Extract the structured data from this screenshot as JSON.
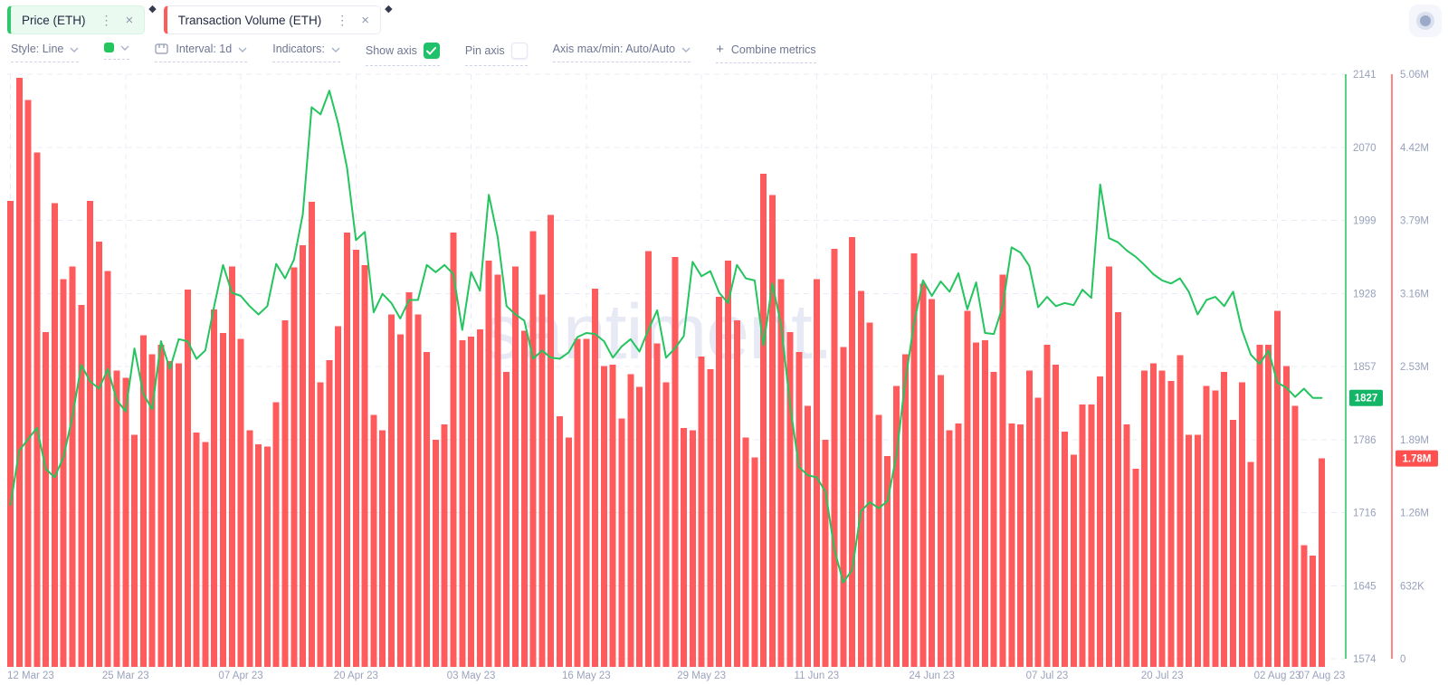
{
  "header": {
    "tabs": [
      {
        "label": "Price (ETH)",
        "accent": "#2ec76d"
      },
      {
        "label": "Transaction Volume (ETH)",
        "accent": "#ff5b5c"
      }
    ]
  },
  "icons": {
    "kebab": "⋮",
    "close": "×",
    "plus": "+",
    "diamond": "◆"
  },
  "toolbar": {
    "style": {
      "label": "Style: Line"
    },
    "color_swatch": "#22c55e",
    "interval": {
      "label": "Interval: 1d"
    },
    "indicators": {
      "label": "Indicators:"
    },
    "show_axis": {
      "label": "Show axis",
      "checked": true
    },
    "pin_axis": {
      "label": "Pin axis",
      "checked": false
    },
    "axis_maxmin": {
      "label": "Axis max/min: Auto/Auto"
    },
    "combine": {
      "label": "Combine metrics"
    }
  },
  "watermark": "santiment.",
  "chart_data": {
    "type": "combo",
    "title": "",
    "x": {
      "unit": "day",
      "start": "12 Mar 23",
      "end": "07 Aug 23",
      "labels": [
        {
          "text": "12 Mar 23",
          "day": 0
        },
        {
          "text": "25 Mar 23",
          "day": 13
        },
        {
          "text": "07 Apr 23",
          "day": 26
        },
        {
          "text": "20 Apr 23",
          "day": 39
        },
        {
          "text": "03 May 23",
          "day": 52
        },
        {
          "text": "16 May 23",
          "day": 65
        },
        {
          "text": "29 May 23",
          "day": 78
        },
        {
          "text": "11 Jun 23",
          "day": 91
        },
        {
          "text": "24 Jun 23",
          "day": 104
        },
        {
          "text": "07 Jul 23",
          "day": 117
        },
        {
          "text": "20 Jul 23",
          "day": 130
        },
        {
          "text": "02 Aug 23",
          "day": 143
        },
        {
          "text": "07 Aug 23",
          "day": 148
        }
      ]
    },
    "price_axis": {
      "color": "#22c55e",
      "min": 1574,
      "max": 2141,
      "ticks": [
        2141,
        2070,
        1999,
        1928,
        1857,
        1786,
        1716,
        1645,
        1574
      ],
      "current_value": "1827"
    },
    "volume_axis": {
      "color": "#ff5b5c",
      "min": 0,
      "max_millions": 5.06,
      "ticks": [
        "5.06M",
        "4.42M",
        "3.79M",
        "3.16M",
        "2.53M",
        "1.89M",
        "1.26M",
        "632K",
        "0"
      ],
      "current_value": "1.78M"
    },
    "series": [
      {
        "name": "Price (ETH)",
        "type": "line",
        "color": "#24c45e",
        "values": [
          1723,
          1776,
          1787,
          1798,
          1758,
          1750,
          1770,
          1809,
          1859,
          1843,
          1836,
          1855,
          1825,
          1814,
          1875,
          1831,
          1816,
          1882,
          1855,
          1884,
          1882,
          1865,
          1873,
          1916,
          1956,
          1929,
          1926,
          1916,
          1908,
          1916,
          1957,
          1943,
          1961,
          2005,
          2109,
          2102,
          2125,
          2093,
          2050,
          1980,
          1988,
          1910,
          1928,
          1919,
          1904,
          1922,
          1922,
          1956,
          1949,
          1956,
          1947,
          1893,
          1949,
          1931,
          2024,
          1983,
          1916,
          1908,
          1902,
          1865,
          1873,
          1866,
          1865,
          1871,
          1886,
          1890,
          1889,
          1882,
          1866,
          1877,
          1884,
          1872,
          1893,
          1912,
          1866,
          1875,
          1887,
          1959,
          1945,
          1950,
          1929,
          1919,
          1956,
          1943,
          1941,
          1878,
          1938,
          1897,
          1820,
          1760,
          1752,
          1750,
          1736,
          1680,
          1648,
          1660,
          1717,
          1726,
          1720,
          1727,
          1771,
          1843,
          1900,
          1941,
          1926,
          1940,
          1930,
          1948,
          1913,
          1939,
          1890,
          1889,
          1916,
          1973,
          1968,
          1955,
          1915,
          1925,
          1916,
          1919,
          1917,
          1932,
          1924,
          2034,
          1982,
          1978,
          1970,
          1964,
          1956,
          1947,
          1941,
          1938,
          1943,
          1930,
          1908,
          1922,
          1925,
          1916,
          1930,
          1893,
          1869,
          1860,
          1873,
          1842,
          1837,
          1828,
          1836,
          1827,
          1827
        ]
      },
      {
        "name": "Transaction Volume (ETH)",
        "type": "bar",
        "color": "#ff5b5c",
        "unit": "millions",
        "values": [
          3.98,
          5.03,
          4.84,
          4.39,
          2.86,
          3.96,
          3.31,
          3.42,
          3.09,
          3.98,
          3.63,
          3.38,
          2.53,
          2.47,
          1.98,
          2.83,
          2.67,
          2.75,
          2.61,
          2.59,
          3.22,
          2.0,
          1.92,
          3.05,
          2.85,
          3.42,
          2.8,
          2.02,
          1.9,
          1.88,
          2.26,
          2.96,
          3.41,
          3.6,
          3.97,
          2.43,
          2.62,
          2.91,
          3.71,
          3.56,
          3.43,
          2.15,
          2.02,
          3.01,
          2.84,
          3.2,
          3.01,
          2.69,
          1.94,
          2.07,
          3.71,
          2.79,
          2.82,
          2.88,
          3.47,
          3.35,
          2.52,
          3.42,
          2.87,
          3.72,
          3.18,
          3.86,
          2.14,
          1.96,
          2.8,
          2.8,
          3.23,
          2.57,
          2.58,
          2.12,
          2.5,
          2.39,
          3.55,
          2.76,
          2.43,
          3.5,
          2.04,
          2.02,
          2.65,
          2.54,
          3.16,
          3.47,
          2.96,
          1.96,
          1.79,
          4.21,
          4.03,
          3.31,
          2.86,
          2.69,
          2.23,
          3.31,
          1.94,
          3.57,
          2.73,
          3.67,
          3.21,
          2.94,
          2.15,
          1.8,
          2.4,
          2.67,
          3.53,
          3.27,
          3.14,
          2.49,
          2.02,
          2.08,
          3.04,
          2.77,
          2.79,
          2.52,
          3.35,
          2.08,
          2.07,
          2.53,
          2.3,
          2.75,
          2.58,
          2.01,
          1.81,
          2.24,
          2.24,
          2.48,
          3.42,
          3.03,
          2.07,
          1.69,
          2.53,
          2.59,
          2.53,
          2.44,
          2.66,
          1.98,
          1.98,
          2.4,
          2.36,
          2.52,
          2.11,
          2.43,
          1.75,
          2.75,
          2.75,
          3.04,
          2.57,
          2.23,
          1.04,
          0.95,
          1.78
        ]
      }
    ],
    "grid": true
  }
}
